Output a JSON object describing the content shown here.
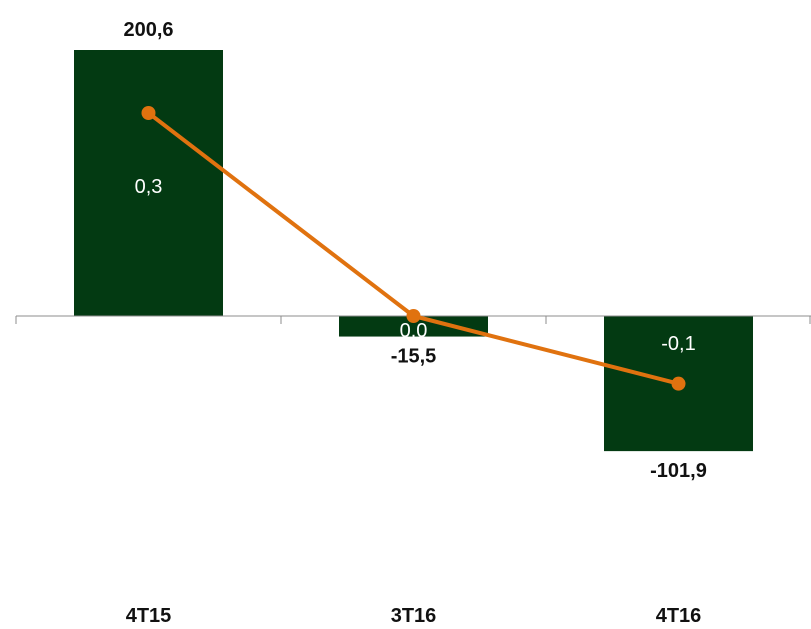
{
  "chart_data": {
    "type": "bar",
    "categories": [
      "4T15",
      "3T16",
      "4T16"
    ],
    "series": [
      {
        "type": "bar",
        "values": [
          200.6,
          -15.5,
          -101.9
        ],
        "value_labels": [
          "200,6",
          "-15,5",
          "-101,9"
        ],
        "color": "#033a12"
      },
      {
        "type": "line",
        "values": [
          0.3,
          0.0,
          -0.1
        ],
        "value_labels": [
          "0,3",
          "0.0",
          "-0,1"
        ],
        "color": "#e0720f"
      }
    ],
    "title": "",
    "xlabel": "",
    "ylabel": "",
    "grid": false,
    "legend": "none"
  }
}
